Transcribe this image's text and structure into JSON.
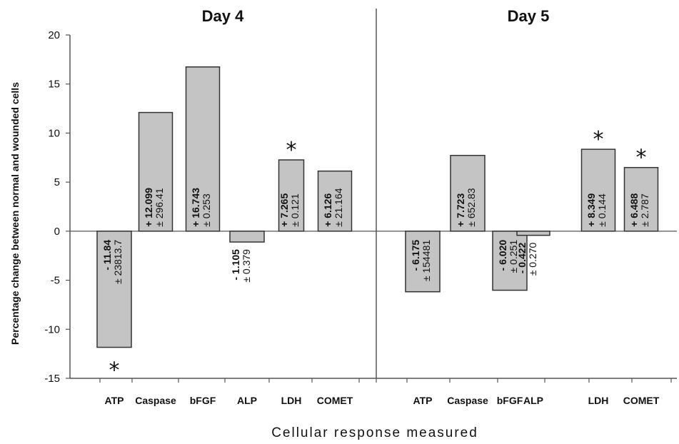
{
  "chart_data": [
    {
      "type": "bar",
      "title": "Day 4",
      "categories": [
        "ATP",
        "Caspase",
        "bFGF",
        "ALP",
        "LDH",
        "COMET"
      ],
      "values": [
        -11.84,
        12.099,
        16.743,
        -1.105,
        7.265,
        6.126
      ],
      "value_labels": [
        "- 11.84",
        "+ 12.099",
        "+ 16.743",
        "- 1.105",
        "+ 7.265",
        "+ 6.126"
      ],
      "error_labels": [
        "± 23813.7",
        "± 296.41",
        "± 0.253",
        "± 0.379",
        "± 0.121",
        "± 21.164"
      ],
      "significant": [
        true,
        false,
        false,
        false,
        true,
        false
      ],
      "ylim": [
        -15,
        20
      ],
      "yticks": [
        "-15",
        "-10",
        "-5",
        "0",
        "5",
        "10",
        "15",
        "20"
      ]
    },
    {
      "type": "bar",
      "title": "Day 5",
      "categories": [
        "ATP",
        "Caspase",
        "bFGF",
        "ALP",
        "LDH",
        "COMET"
      ],
      "values": [
        -6.175,
        7.723,
        -6.02,
        -0.422,
        8.349,
        6.488
      ],
      "value_labels": [
        "- 6.175",
        "+ 7.723",
        "- 6.020",
        "- 0.422",
        "+ 8.349",
        "+ 6.488"
      ],
      "error_labels": [
        "± 154481",
        "± 652.83",
        "± 0.251",
        "± 0.270",
        "± 0.144",
        "± 2.787"
      ],
      "significant": [
        false,
        false,
        false,
        false,
        true,
        true
      ],
      "ylim": [
        -15,
        20
      ]
    }
  ],
  "ylabel": "Percentage change between normal and wounded cells",
  "xlabel": "Cellular response measured",
  "significance_marker": "*",
  "colors": {
    "bar_fill": "#c4c4c4",
    "bar_stroke": "#333333",
    "axis": "#555555",
    "text": "#111111"
  }
}
